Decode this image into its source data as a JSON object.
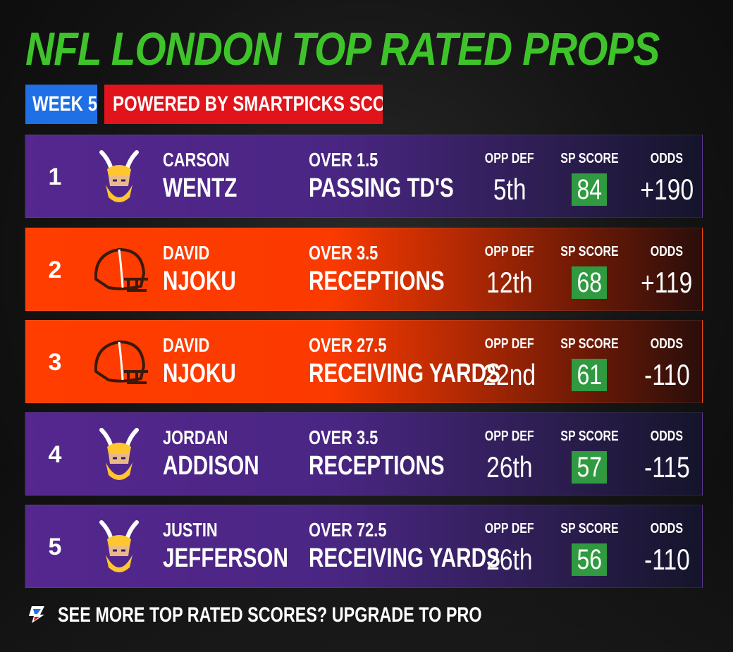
{
  "title": "NFL LONDON TOP RATED PROPS",
  "tags": {
    "week": "WEEK 5",
    "powered": "POWERED BY SMARTPICKS SCORES"
  },
  "columns": {
    "opp_def": "OPP DEF",
    "sp_score": "SP SCORE",
    "odds": "ODDS"
  },
  "colors": {
    "title": "#3ec42a",
    "week_tag": "#1f6fe6",
    "powered_tag": "#e1141b",
    "sp_box": "#2f9a3f",
    "vikings": "#55278f",
    "browns": "#ff3d00"
  },
  "rows": [
    {
      "rank": "1",
      "team_logo": "vikings-logo-icon",
      "first": "CARSON",
      "last": "WENTZ",
      "prop1": "OVER 1.5",
      "prop2": "PASSING TD'S",
      "opp_def": "5th",
      "sp_score": "84",
      "odds": "+190"
    },
    {
      "rank": "2",
      "team_logo": "browns-helmet-icon",
      "first": "DAVID",
      "last": "NJOKU",
      "prop1": "OVER 3.5",
      "prop2": "RECEPTIONS",
      "opp_def": "12th",
      "sp_score": "68",
      "odds": "+119"
    },
    {
      "rank": "3",
      "team_logo": "browns-helmet-icon",
      "first": "DAVID",
      "last": "NJOKU",
      "prop1": "OVER 27.5",
      "prop2": "RECEIVING YARDS",
      "opp_def": "22nd",
      "sp_score": "61",
      "odds": "-110"
    },
    {
      "rank": "4",
      "team_logo": "vikings-logo-icon",
      "first": "JORDAN",
      "last": "ADDISON",
      "prop1": "OVER 3.5",
      "prop2": "RECEPTIONS",
      "opp_def": "26th",
      "sp_score": "57",
      "odds": "-115"
    },
    {
      "rank": "5",
      "team_logo": "vikings-logo-icon",
      "first": "JUSTIN",
      "last": "JEFFERSON",
      "prop1": "OVER 72.5",
      "prop2": "RECEIVING YARDS",
      "opp_def": "26th",
      "sp_score": "56",
      "odds": "-110"
    }
  ],
  "footer": {
    "icon": "smartpicks-logo-icon",
    "text": "SEE MORE TOP RATED SCORES? UPGRADE TO PRO"
  }
}
